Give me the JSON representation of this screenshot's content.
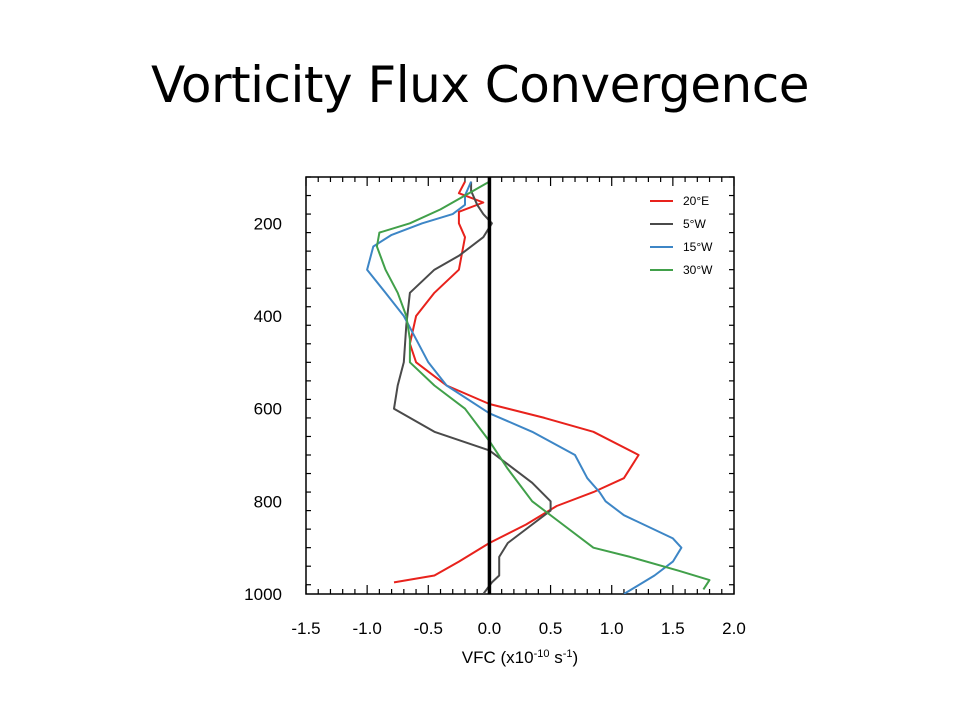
{
  "slide": {
    "title": "Vorticity Flux Convergence"
  },
  "chart_data": {
    "type": "line",
    "title": "",
    "xlabel": "VFC (x10^-10 s^-1)",
    "xlabel_parts": {
      "prefix": "VFC (x10",
      "exp1": "-10",
      "middle": " s",
      "exp2": "-1",
      "suffix": ")"
    },
    "ylabel": "",
    "xlim": [
      -1.5,
      2.0
    ],
    "ylim": [
      1000,
      100
    ],
    "y_inverted": true,
    "xticks": [
      -1.5,
      -1.0,
      -0.5,
      0.0,
      0.5,
      1.0,
      1.5,
      2.0
    ],
    "xtick_labels": [
      "-1.5",
      "-1.0",
      "-0.5",
      "0.0",
      "0.5",
      "1.0",
      "1.5",
      "2.0"
    ],
    "yticks": [
      200,
      400,
      600,
      800,
      1000
    ],
    "ytick_labels": [
      "200",
      "400",
      "600",
      "800",
      "1000"
    ],
    "zero_line": {
      "x": 0,
      "color": "#000000"
    },
    "legend": {
      "position": "top-right"
    },
    "series": [
      {
        "name": "20°E",
        "color": "#e8221c",
        "points": [
          [
            -0.2,
            110
          ],
          [
            -0.25,
            135
          ],
          [
            -0.05,
            155
          ],
          [
            -0.25,
            175
          ],
          [
            -0.25,
            200
          ],
          [
            -0.2,
            230
          ],
          [
            -0.25,
            300
          ],
          [
            -0.45,
            350
          ],
          [
            -0.6,
            400
          ],
          [
            -0.65,
            460
          ],
          [
            -0.6,
            500
          ],
          [
            -0.35,
            550
          ],
          [
            0.0,
            590
          ],
          [
            0.45,
            620
          ],
          [
            0.85,
            650
          ],
          [
            1.22,
            700
          ],
          [
            1.1,
            750
          ],
          [
            0.85,
            780
          ],
          [
            0.55,
            810
          ],
          [
            0.3,
            850
          ],
          [
            0.0,
            890
          ],
          [
            -0.25,
            930
          ],
          [
            -0.45,
            960
          ],
          [
            -0.78,
            975
          ]
        ]
      },
      {
        "name": "5°W",
        "color": "#4a4a4a",
        "points": [
          [
            -0.15,
            110
          ],
          [
            -0.15,
            130
          ],
          [
            -0.1,
            160
          ],
          [
            -0.05,
            180
          ],
          [
            0.02,
            200
          ],
          [
            -0.05,
            230
          ],
          [
            -0.25,
            270
          ],
          [
            -0.45,
            300
          ],
          [
            -0.65,
            350
          ],
          [
            -0.68,
            420
          ],
          [
            -0.7,
            500
          ],
          [
            -0.75,
            550
          ],
          [
            -0.78,
            600
          ],
          [
            -0.45,
            650
          ],
          [
            0.0,
            690
          ],
          [
            0.15,
            720
          ],
          [
            0.35,
            760
          ],
          [
            0.5,
            800
          ],
          [
            0.5,
            820
          ],
          [
            0.35,
            850
          ],
          [
            0.15,
            890
          ],
          [
            0.08,
            920
          ],
          [
            0.08,
            960
          ],
          [
            0.02,
            975
          ],
          [
            -0.05,
            1000
          ]
        ]
      },
      {
        "name": "15°W",
        "color": "#3d86c6",
        "points": [
          [
            -0.15,
            110
          ],
          [
            -0.2,
            140
          ],
          [
            -0.2,
            160
          ],
          [
            -0.3,
            180
          ],
          [
            -0.55,
            200
          ],
          [
            -0.8,
            225
          ],
          [
            -0.95,
            250
          ],
          [
            -1.0,
            300
          ],
          [
            -0.85,
            350
          ],
          [
            -0.7,
            400
          ],
          [
            -0.6,
            450
          ],
          [
            -0.5,
            500
          ],
          [
            -0.35,
            550
          ],
          [
            0.0,
            610
          ],
          [
            0.35,
            650
          ],
          [
            0.7,
            700
          ],
          [
            0.8,
            750
          ],
          [
            0.9,
            780
          ],
          [
            0.95,
            800
          ],
          [
            1.1,
            830
          ],
          [
            1.5,
            880
          ],
          [
            1.57,
            900
          ],
          [
            1.5,
            930
          ],
          [
            1.35,
            960
          ],
          [
            1.1,
            1000
          ]
        ]
      },
      {
        "name": "30°W",
        "color": "#41a04a",
        "points": [
          [
            0.0,
            110
          ],
          [
            -0.2,
            140
          ],
          [
            -0.4,
            170
          ],
          [
            -0.65,
            200
          ],
          [
            -0.9,
            220
          ],
          [
            -0.92,
            250
          ],
          [
            -0.85,
            300
          ],
          [
            -0.75,
            350
          ],
          [
            -0.68,
            400
          ],
          [
            -0.65,
            450
          ],
          [
            -0.65,
            500
          ],
          [
            -0.45,
            550
          ],
          [
            -0.2,
            600
          ],
          [
            0.0,
            670
          ],
          [
            0.15,
            730
          ],
          [
            0.35,
            800
          ],
          [
            0.6,
            850
          ],
          [
            0.85,
            900
          ],
          [
            1.15,
            920
          ],
          [
            1.55,
            950
          ],
          [
            1.8,
            970
          ],
          [
            1.75,
            990
          ]
        ]
      }
    ]
  }
}
